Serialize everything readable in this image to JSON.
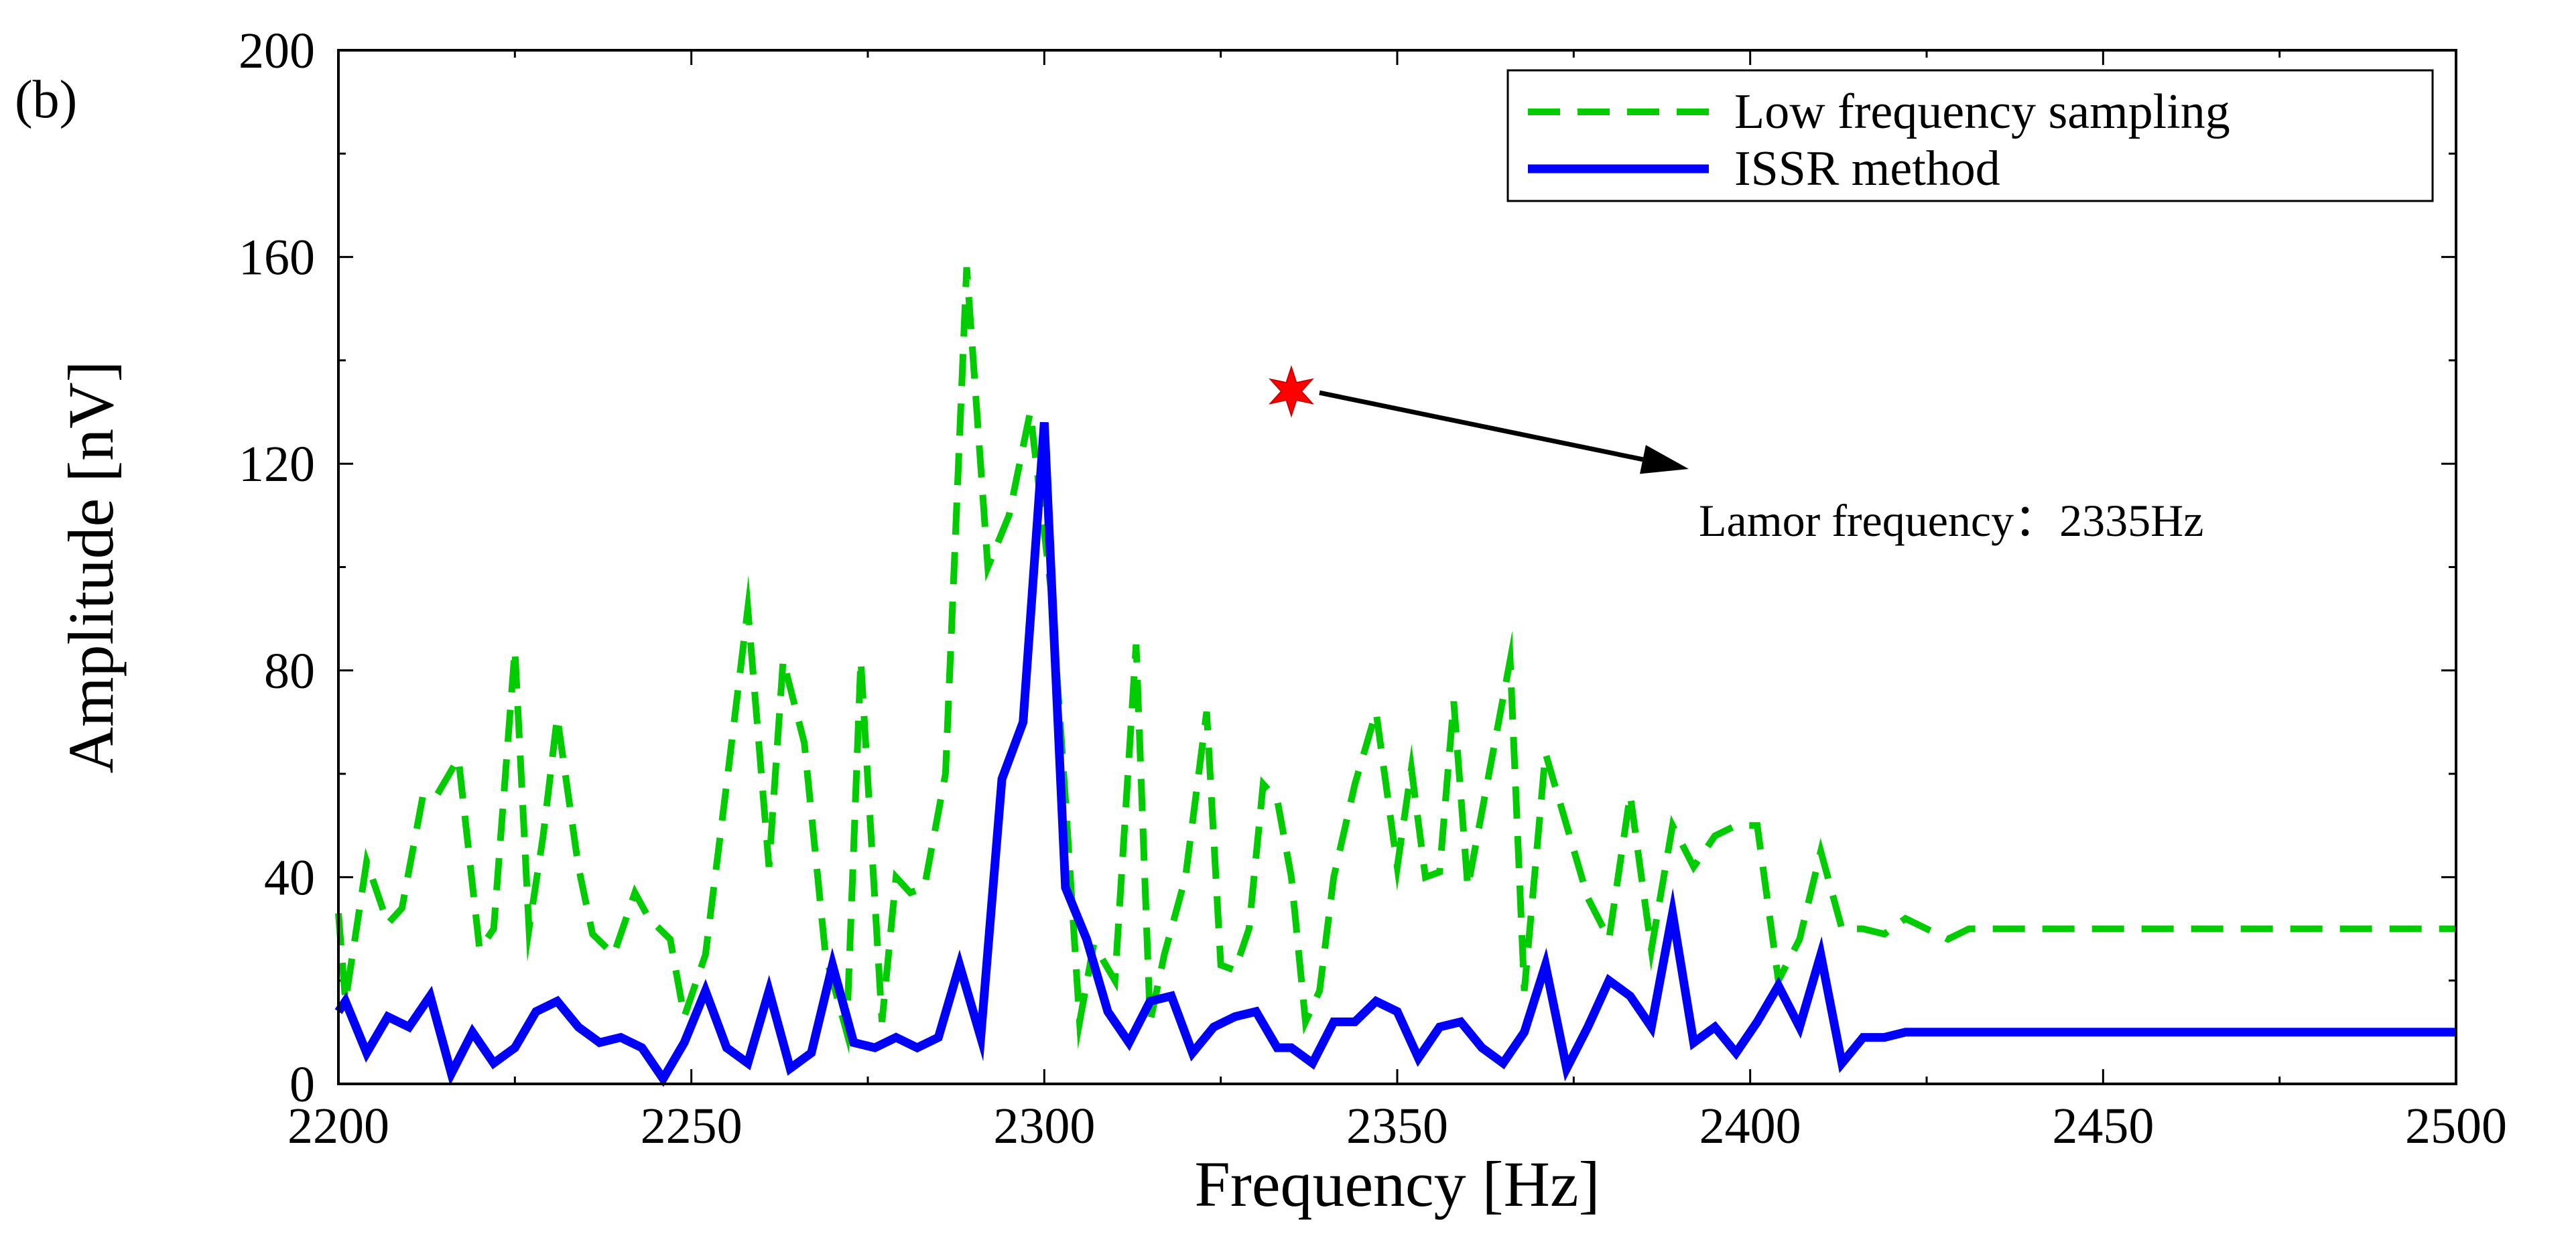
{
  "chart_data": {
    "type": "line",
    "panel_label": "(b)",
    "xlabel": "Frequency [Hz]",
    "ylabel": "Amplitude [nV]",
    "xlim": [
      2200,
      2500
    ],
    "ylim": [
      0,
      200
    ],
    "xticks": [
      2200,
      2250,
      2300,
      2350,
      2400,
      2450,
      2500
    ],
    "yticks": [
      0,
      40,
      80,
      120,
      160,
      200
    ],
    "legend_position": "top-right",
    "annotation": {
      "text": "Lamor frequency：2335Hz",
      "marker_x": 2335,
      "marker_y": 134,
      "marker": "red-star"
    },
    "series": [
      {
        "name": "Low frequency sampling",
        "style": "dashed",
        "color": "#00cc00",
        "x": [
          2200,
          2201,
          2204,
          2207,
          2209,
          2212,
          2214,
          2217,
          2220,
          2222,
          2225,
          2227,
          2229,
          2231,
          2234,
          2236,
          2239,
          2242,
          2244,
          2247,
          2249,
          2252,
          2255,
          2258,
          2261,
          2263,
          2266,
          2269,
          2272,
          2274,
          2277,
          2279,
          2281,
          2283,
          2286,
          2289,
          2292,
          2295,
          2298,
          2301,
          2303,
          2305,
          2307,
          2310,
          2313,
          2315,
          2317,
          2320,
          2323,
          2325,
          2327,
          2329,
          2331,
          2333,
          2335,
          2337,
          2339,
          2341,
          2344,
          2347,
          2350,
          2352,
          2354,
          2356,
          2358,
          2360,
          2363,
          2366,
          2368,
          2371,
          2374,
          2377,
          2380,
          2383,
          2386,
          2389,
          2392,
          2395,
          2398,
          2401,
          2404,
          2407,
          2410,
          2413,
          2416,
          2419,
          2422,
          2425,
          2428,
          2431,
          2434,
          2437,
          2440,
          2443,
          2446,
          2449,
          2452,
          2455,
          2458,
          2461,
          2464,
          2467,
          2470,
          2473,
          2476,
          2479,
          2482,
          2485,
          2488,
          2491,
          2494,
          2497,
          2500
        ],
        "values": [
          33,
          16,
          43,
          31,
          34,
          56,
          56,
          63,
          26,
          30,
          84,
          30,
          48,
          71,
          42,
          29,
          25,
          37,
          32,
          28,
          13,
          25,
          58,
          92,
          42,
          82,
          66,
          25,
          10,
          82,
          12,
          40,
          37,
          38,
          60,
          158,
          100,
          110,
          130,
          95,
          55,
          12,
          27,
          20,
          85,
          12,
          25,
          40,
          72,
          23,
          22,
          30,
          58,
          55,
          40,
          12,
          18,
          40,
          58,
          72,
          42,
          61,
          40,
          41,
          74,
          38,
          60,
          82,
          18,
          64,
          50,
          36,
          28,
          56,
          26,
          50,
          42,
          48,
          50,
          50,
          20,
          28,
          45,
          30,
          30,
          29,
          32,
          30,
          28,
          30,
          30,
          30,
          30,
          30,
          30,
          30,
          30,
          30,
          30,
          30,
          30,
          30,
          30,
          30,
          30,
          30,
          30,
          30,
          30,
          30,
          30,
          30,
          30
        ]
      },
      {
        "name": "ISSR method",
        "style": "solid",
        "color": "#0000ff",
        "x": [
          2200,
          2201,
          2204,
          2207,
          2210,
          2213,
          2216,
          2219,
          2222,
          2225,
          2228,
          2231,
          2234,
          2237,
          2240,
          2243,
          2246,
          2249,
          2252,
          2255,
          2258,
          2261,
          2264,
          2267,
          2270,
          2273,
          2276,
          2279,
          2282,
          2285,
          2288,
          2291,
          2294,
          2297,
          2300,
          2303,
          2306,
          2309,
          2312,
          2315,
          2318,
          2321,
          2324,
          2327,
          2330,
          2333,
          2335,
          2338,
          2341,
          2344,
          2347,
          2350,
          2353,
          2356,
          2359,
          2362,
          2365,
          2368,
          2371,
          2374,
          2377,
          2380,
          2383,
          2386,
          2389,
          2392,
          2395,
          2398,
          2401,
          2404,
          2407,
          2410,
          2413,
          2416,
          2419,
          2422,
          2425,
          2428,
          2431,
          2434,
          2437,
          2440,
          2443,
          2446,
          2449,
          2452,
          2455,
          2458,
          2461,
          2464,
          2467,
          2470,
          2473,
          2476,
          2479,
          2482,
          2485,
          2488,
          2491,
          2494,
          2497,
          2500
        ],
        "values": [
          14,
          16,
          6,
          13,
          11,
          17,
          2,
          10,
          4,
          7,
          14,
          16,
          11,
          8,
          9,
          7,
          1,
          8,
          18,
          7,
          4,
          18,
          3,
          6,
          23,
          8,
          7,
          9,
          7,
          9,
          23,
          9,
          59,
          70,
          128,
          38,
          28,
          14,
          8,
          16,
          17,
          6,
          11,
          13,
          14,
          7,
          7,
          4,
          12,
          12,
          16,
          14,
          5,
          11,
          12,
          7,
          4,
          10,
          23,
          3,
          11,
          20,
          17,
          11,
          33,
          8,
          11,
          6,
          12,
          19,
          11,
          25,
          4,
          9,
          9,
          10,
          10,
          10,
          10,
          10,
          10,
          10,
          10,
          10,
          10,
          10,
          10,
          10,
          10,
          10,
          10,
          10,
          10,
          10,
          10,
          10,
          10,
          10,
          10,
          10,
          10,
          10
        ]
      }
    ]
  }
}
